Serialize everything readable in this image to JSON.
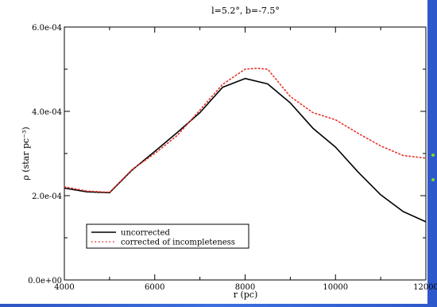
{
  "chart_data": {
    "type": "line",
    "title": "l=5.2°, b=-7.5°",
    "xlabel": "r (pc)",
    "ylabel": "ρ (star pc⁻³)",
    "xlim": [
      4000,
      12000
    ],
    "ylim": [
      0,
      0.0006
    ],
    "x_ticks": [
      4000,
      6000,
      8000,
      10000,
      12000
    ],
    "x_tick_labels": [
      "4000",
      "6000",
      "8000",
      "10000",
      "12000"
    ],
    "y_ticks": [
      0,
      0.0002,
      0.0004,
      0.0006
    ],
    "y_tick_labels": [
      "0.0e+00",
      "2.0e-04",
      "4.0e-04",
      "6.0e-04"
    ],
    "legend_position": "bottom-left",
    "series": [
      {
        "name": "uncorrected",
        "style": "solid",
        "color": "#000000",
        "x": [
          4000,
          4500,
          5000,
          5500,
          6000,
          6500,
          7000,
          7500,
          8000,
          8500,
          9000,
          9500,
          10000,
          10500,
          11000,
          11500,
          12000
        ],
        "y": [
          0.000218,
          0.000209,
          0.000207,
          0.000261,
          0.000305,
          0.00035,
          0.000397,
          0.000457,
          0.000478,
          0.000465,
          0.00042,
          0.00036,
          0.000315,
          0.000256,
          0.000202,
          0.000162,
          0.000138
        ]
      },
      {
        "name": "corrected of incompleteness",
        "style": "dotted",
        "color": "#e8312a",
        "x": [
          4000,
          4500,
          5000,
          5500,
          6000,
          6500,
          7000,
          7500,
          8000,
          8250,
          8500,
          9000,
          9500,
          10000,
          10500,
          11000,
          11500,
          12000
        ],
        "y": [
          0.000221,
          0.000211,
          0.000208,
          0.000262,
          0.0003,
          0.000343,
          0.000403,
          0.000464,
          0.0005,
          0.000502,
          0.0005,
          0.000435,
          0.000397,
          0.00038,
          0.000348,
          0.000318,
          0.000295,
          0.000289
        ]
      }
    ]
  },
  "colors": {
    "background_gradient": [
      "#2e56c4",
      "#3d6fe0"
    ],
    "side_dots": "#7ddc1f"
  }
}
